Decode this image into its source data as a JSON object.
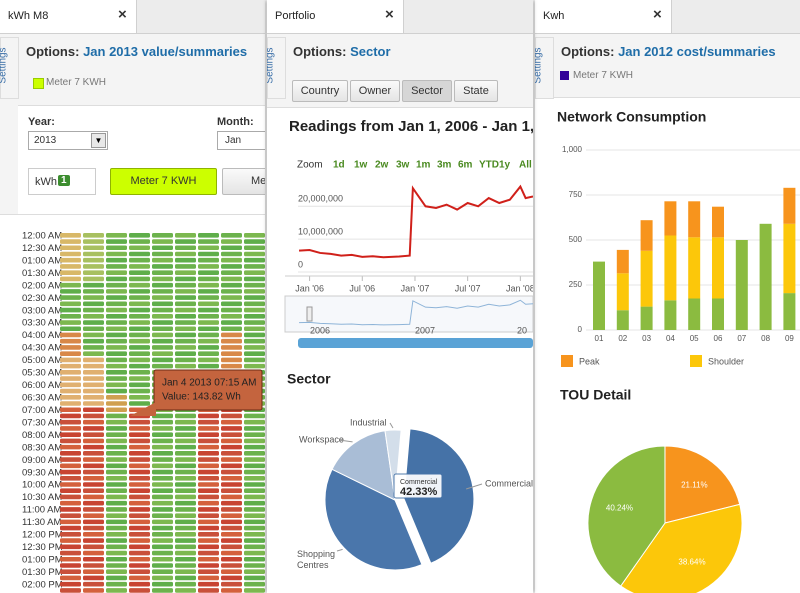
{
  "panels": [
    {
      "tab": "kWh M8",
      "close": "×",
      "settings": "Settings",
      "options_label": "Options:",
      "options_value": "Jan 2013 value/summaries",
      "legend": "Meter 7 KWH",
      "year_label": "Year:",
      "year": "2013",
      "month_label": "Month:",
      "month": "Jan",
      "unit": "kWh",
      "badge": "1",
      "buttons": [
        "Meter 7 KWH",
        "Met"
      ],
      "heatmap": {
        "times": [
          "12:00 AM",
          "12:30 AM",
          "01:00 AM",
          "01:30 AM",
          "02:00 AM",
          "02:30 AM",
          "03:00 AM",
          "03:30 AM",
          "04:00 AM",
          "04:30 AM",
          "05:00 AM",
          "05:30 AM",
          "06:00 AM",
          "06:30 AM",
          "07:00 AM",
          "07:30 AM",
          "08:00 AM",
          "08:30 AM",
          "09:00 AM",
          "09:30 AM",
          "10:00 AM",
          "10:30 AM",
          "11:00 AM",
          "11:30 AM",
          "12:00 PM",
          "12:30 PM",
          "01:00 PM",
          "01:30 PM",
          "02:00 PM"
        ],
        "tooltip": [
          "Jan 4 2013 07:15 AM",
          "Value: 143.82 Wh"
        ]
      }
    },
    {
      "tab": "Portfolio",
      "close": "×",
      "settings": "Settings",
      "options_label": "Options:",
      "options_value": "Sector",
      "buttons": [
        "Country",
        "Owner",
        "Sector",
        "State"
      ],
      "line_chart": {
        "type": "line",
        "title": "Readings from Jan 1, 2006 - Jan 1,",
        "zoom_label": "Zoom",
        "zoom_buttons": [
          "1d",
          "1w",
          "2w",
          "3w",
          "1m",
          "3m",
          "6m",
          "YTD",
          "1y",
          "All"
        ],
        "x": [
          2005.9,
          2006.0,
          2006.1,
          2006.2,
          2006.3,
          2006.4,
          2006.5,
          2006.6,
          2006.7,
          2006.85,
          2006.95,
          2006.98,
          2007.1,
          2007.2,
          2007.3,
          2007.4,
          2007.5,
          2007.6,
          2007.7,
          2007.8,
          2007.9,
          2008.0,
          2008.05,
          2008.12
        ],
        "series": [
          {
            "color": "#d0201a",
            "values": [
              6500000,
              6700000,
              5800000,
              5500000,
              5000000,
              5200000,
              4600000,
              4800000,
              4500000,
              4700000,
              5000000,
              25500000,
              20000000,
              19500000,
              20500000,
              19000000,
              21000000,
              20000000,
              22500000,
              21000000,
              22000000,
              26000000,
              22500000,
              23000000
            ]
          }
        ],
        "xlim": [
          2005.89,
          2008.12
        ],
        "xticks": [
          {
            "value": 2006,
            "label": "Jan '06"
          },
          {
            "value": 2006.5,
            "label": "Jul '06"
          },
          {
            "value": 2007,
            "label": "Jan '07"
          },
          {
            "value": 2007.5,
            "label": "Jul '07"
          },
          {
            "value": 2008,
            "label": "Jan '08"
          }
        ],
        "ylim": [
          0,
          28000000
        ],
        "yticks": [
          0,
          {
            "value": 10000000,
            "label": "10,000,000"
          },
          {
            "value": 20000000,
            "label": "20,000,000"
          }
        ],
        "grid": true,
        "navigator_labels": [
          "2006",
          "2007",
          "20"
        ]
      },
      "sector_chart": {
        "type": "pie",
        "title": "Sector",
        "categories": [
          "Commercial",
          "Shopping Centres",
          "Workspace",
          "Industrial"
        ],
        "values": [
          42.33,
          38.5,
          15.5,
          3.67
        ],
        "colors": [
          "#4572a7",
          "#4a76ab",
          "#a9bdd6",
          "#d3deea"
        ],
        "tooltip": {
          "title": "Commercial",
          "value": "42.33%"
        }
      }
    },
    {
      "tab": "Kwh",
      "close": "×",
      "settings": "Settings",
      "options_label": "Options:",
      "options_value": "Jan 2012 cost/summaries",
      "legend": "Meter 7 KWH",
      "bar_chart": {
        "type": "bar",
        "stacked": true,
        "title": "Network Consumption",
        "categories": [
          "01",
          "02",
          "03",
          "04",
          "05",
          "06",
          "07",
          "08",
          "09"
        ],
        "series": [
          {
            "color": "#8bbb40",
            "values": [
              380,
              110,
              130,
              165,
              175,
              175,
              500,
              590,
              205
            ]
          },
          {
            "name": "Shoulder",
            "color": "#fcc70a",
            "values": [
              0,
              205,
              310,
              360,
              340,
              340,
              0,
              0,
              385
            ]
          },
          {
            "name": "Peak",
            "color": "#f7941d",
            "values": [
              0,
              130,
              170,
              190,
              200,
              170,
              0,
              0,
              200
            ]
          }
        ],
        "ylim": [
          0,
          1000
        ],
        "yticks": [
          0,
          250,
          500,
          750,
          {
            "value": 1000,
            "label": "1,000"
          }
        ],
        "grid": true
      },
      "tou_chart": {
        "type": "pie",
        "title": "TOU Detail",
        "values": [
          21.11,
          38.64,
          40.24
        ],
        "value_labels": [
          "21.11%",
          "38.64%",
          "40.24%"
        ],
        "colors": [
          "#f7941d",
          "#fcc70a",
          "#8bbb40"
        ]
      }
    }
  ]
}
